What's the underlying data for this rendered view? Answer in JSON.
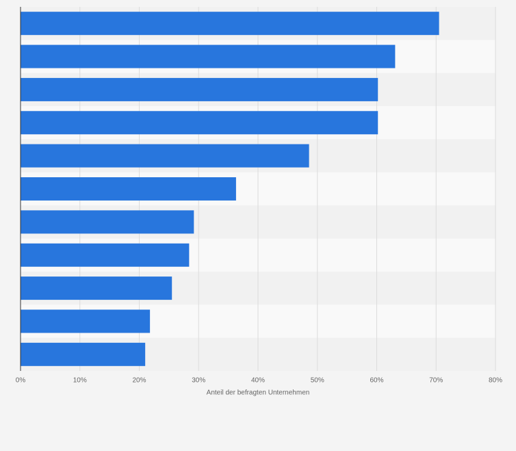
{
  "chart_data": {
    "type": "bar",
    "orientation": "horizontal",
    "xlabel": "Anteil der befragten Unternehmen",
    "categories": [
      null,
      null,
      null,
      null,
      null,
      null,
      null,
      null,
      null,
      null,
      null
    ],
    "values": [
      70.5,
      63.1,
      60.2,
      60.2,
      48.6,
      36.3,
      29.2,
      28.4,
      25.5,
      21.8,
      21.0
    ],
    "color": "#2876dd",
    "xlim": [
      0,
      80
    ],
    "xticks": [
      {
        "value": 0,
        "label": "0%"
      },
      {
        "value": 10,
        "label": "10%"
      },
      {
        "value": 20,
        "label": "20%"
      },
      {
        "value": 30,
        "label": "30%"
      },
      {
        "value": 40,
        "label": "40%"
      },
      {
        "value": 50,
        "label": "50%"
      },
      {
        "value": 60,
        "label": "60%"
      },
      {
        "value": 70,
        "label": "70%"
      },
      {
        "value": 80,
        "label": "80%"
      }
    ],
    "grid": true
  }
}
